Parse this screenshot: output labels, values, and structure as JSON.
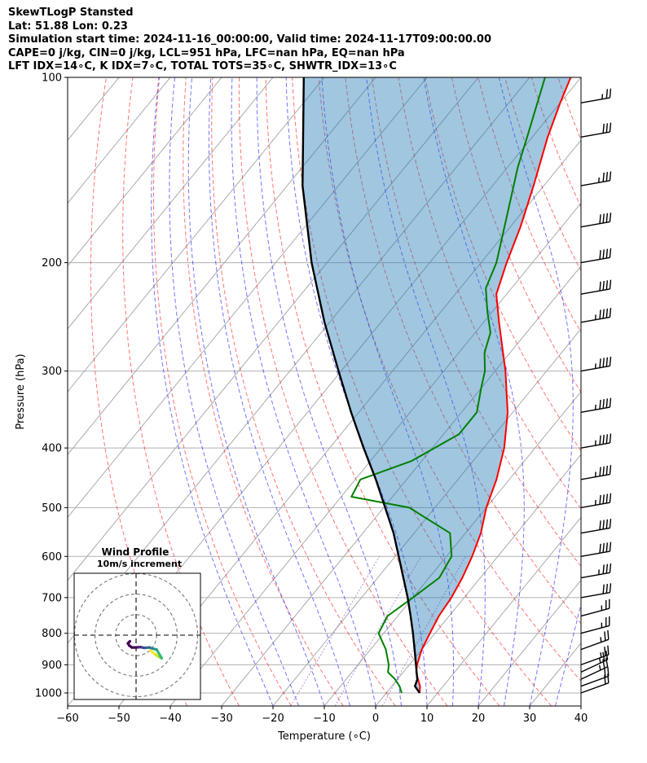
{
  "header": {
    "line1": "SkewTLogP Stansted",
    "line2": "Lat: 51.88   Lon: 0.23",
    "line3": "Simulation start time: 2024-11-16_00:00:00, Valid time: 2024-11-17T09:00:00.00",
    "line4": "CAPE=0 j/kg, CIN=0 j/kg, LCL=951 hPa, LFC=nan hPa, EQ=nan hPa",
    "line5": "LFT IDX=14∘C, K IDX=7∘C, TOTAL TOTS=35∘C, SHWTR_IDX=13∘C"
  },
  "chart_data": {
    "type": "line",
    "xlabel": "Temperature (∘C)",
    "ylabel": "Pressure (hPa)",
    "xlim": [
      -60,
      40
    ],
    "ylim": [
      1050,
      100
    ],
    "x_ticks": [
      "−60",
      "−50",
      "−40",
      "−30",
      "−20",
      "−10",
      "0",
      "10",
      "20",
      "30",
      "40"
    ],
    "y_ticks": [
      "100",
      "200",
      "300",
      "400",
      "500",
      "600",
      "700",
      "800",
      "900",
      "1000"
    ],
    "yscale": "log",
    "grid": true,
    "colors": {
      "temperature": "#ff0000",
      "dewpoint": "#008000",
      "parcel": "#000000",
      "cape_fill": "#1f77b4",
      "dry_adiabat": "#ff0000",
      "moist_adiabat": "#0000ff",
      "mixing_ratio": "#9467bd"
    },
    "series": [
      {
        "points": [
          [
            1000,
            6.5
          ],
          [
            975,
            5.5
          ],
          [
            950,
            4.0
          ],
          [
            925,
            2.5
          ],
          [
            900,
            1.5
          ],
          [
            850,
            0.0
          ],
          [
            800,
            -1.0
          ],
          [
            750,
            -2.0
          ],
          [
            700,
            -2.5
          ],
          [
            650,
            -3.5
          ],
          [
            600,
            -5.0
          ],
          [
            550,
            -7.0
          ],
          [
            500,
            -10.0
          ],
          [
            450,
            -12.5
          ],
          [
            400,
            -16.0
          ],
          [
            350,
            -21.0
          ],
          [
            300,
            -28.0
          ],
          [
            250,
            -37.0
          ],
          [
            225,
            -42.0
          ],
          [
            200,
            -45.0
          ],
          [
            175,
            -48.0
          ],
          [
            150,
            -52.0
          ],
          [
            125,
            -57.0
          ],
          [
            110,
            -60.0
          ],
          [
            100,
            -62.0
          ]
        ]
      },
      {
        "points": [
          [
            1000,
            3.0
          ],
          [
            975,
            1.5
          ],
          [
            950,
            -0.5
          ],
          [
            925,
            -3.0
          ],
          [
            900,
            -4.0
          ],
          [
            850,
            -7.0
          ],
          [
            800,
            -11.0
          ],
          [
            750,
            -12.0
          ],
          [
            700,
            -10.0
          ],
          [
            650,
            -8.0
          ],
          [
            600,
            -9.0
          ],
          [
            550,
            -13.0
          ],
          [
            500,
            -25.0
          ],
          [
            480,
            -38.0
          ],
          [
            450,
            -39.0
          ],
          [
            420,
            -32.0
          ],
          [
            380,
            -27.0
          ],
          [
            350,
            -27.0
          ],
          [
            320,
            -30.0
          ],
          [
            300,
            -32.0
          ],
          [
            280,
            -35.0
          ],
          [
            260,
            -37.0
          ],
          [
            240,
            -41.0
          ],
          [
            220,
            -45.0
          ],
          [
            200,
            -47.0
          ],
          [
            170,
            -52.0
          ],
          [
            140,
            -58.0
          ],
          [
            125,
            -61.0
          ],
          [
            100,
            -67.0
          ]
        ]
      },
      {
        "points": [
          [
            1000,
            6.5
          ],
          [
            975,
            4.5
          ],
          [
            951,
            3.9
          ],
          [
            900,
            1.3
          ],
          [
            850,
            -1.4
          ],
          [
            800,
            -4.3
          ],
          [
            750,
            -7.5
          ],
          [
            700,
            -11.0
          ],
          [
            650,
            -15.0
          ],
          [
            600,
            -19.3
          ],
          [
            550,
            -24.0
          ],
          [
            500,
            -29.7
          ],
          [
            450,
            -36.0
          ],
          [
            400,
            -43.4
          ],
          [
            350,
            -51.5
          ],
          [
            300,
            -60.5
          ],
          [
            250,
            -71.0
          ],
          [
            200,
            -83.0
          ],
          [
            150,
            -97.0
          ],
          [
            100,
            -114.0
          ]
        ]
      }
    ],
    "wind_barbs": [
      {
        "p": 1000,
        "speed": 20,
        "dir": 250
      },
      {
        "p": 975,
        "speed": 20,
        "dir": 250
      },
      {
        "p": 950,
        "speed": 25,
        "dir": 245
      },
      {
        "p": 925,
        "speed": 25,
        "dir": 245
      },
      {
        "p": 900,
        "speed": 25,
        "dir": 250
      },
      {
        "p": 850,
        "speed": 25,
        "dir": 250
      },
      {
        "p": 800,
        "speed": 25,
        "dir": 255
      },
      {
        "p": 750,
        "speed": 25,
        "dir": 255
      },
      {
        "p": 700,
        "speed": 30,
        "dir": 260
      },
      {
        "p": 650,
        "speed": 35,
        "dir": 260
      },
      {
        "p": 600,
        "speed": 40,
        "dir": 260
      },
      {
        "p": 550,
        "speed": 40,
        "dir": 260
      },
      {
        "p": 500,
        "speed": 45,
        "dir": 260
      },
      {
        "p": 450,
        "speed": 45,
        "dir": 260
      },
      {
        "p": 400,
        "speed": 45,
        "dir": 260
      },
      {
        "p": 350,
        "speed": 45,
        "dir": 260
      },
      {
        "p": 300,
        "speed": 45,
        "dir": 260
      },
      {
        "p": 250,
        "speed": 45,
        "dir": 260
      },
      {
        "p": 225,
        "speed": 40,
        "dir": 260
      },
      {
        "p": 200,
        "speed": 40,
        "dir": 260
      },
      {
        "p": 175,
        "speed": 40,
        "dir": 260
      },
      {
        "p": 150,
        "speed": 35,
        "dir": 260
      },
      {
        "p": 125,
        "speed": 30,
        "dir": 260
      },
      {
        "p": 110,
        "speed": 25,
        "dir": 260
      }
    ],
    "hodograph": {
      "title": "Wind Profile",
      "subtitle": "10m/s increment",
      "rings": [
        10,
        20,
        30
      ],
      "points": [
        [
          7.0,
          -7.5
        ],
        [
          9.5,
          -9.5
        ],
        [
          11.0,
          -10.5
        ],
        [
          12.0,
          -11.0
        ],
        [
          12.5,
          -11.2
        ],
        [
          10.0,
          -7.0
        ],
        [
          8.0,
          -6.5
        ],
        [
          6.5,
          -6.0
        ],
        [
          4.0,
          -6.2
        ],
        [
          2.0,
          -5.8
        ],
        [
          0.0,
          -6.0
        ],
        [
          -2.0,
          -6.0
        ],
        [
          -3.2,
          -5.2
        ],
        [
          -4.0,
          -4.0
        ],
        [
          -3.5,
          -3.5
        ],
        [
          -3.0,
          -3.0
        ]
      ]
    }
  }
}
